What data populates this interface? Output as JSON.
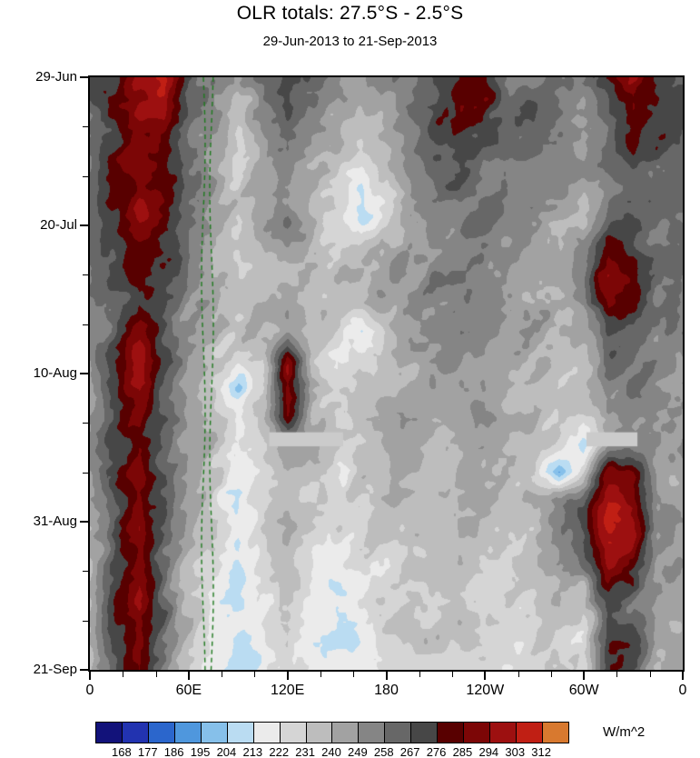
{
  "chart": {
    "title": "OLR totals: 27.5°S - 2.5°S",
    "subtitle": "29-Jun-2013 to 21-Sep-2013",
    "colorbar": {
      "units": "W/m^2"
    }
  },
  "chart_data": {
    "type": "heatmap",
    "title": "OLR totals: 27.5°S - 2.5°S",
    "subtitle": "29-Jun-2013 to 21-Sep-2013",
    "x_axis": {
      "range_deg_lon": [
        0,
        360
      ],
      "ticks": [
        {
          "v": 0,
          "label": "0"
        },
        {
          "v": 60,
          "label": "60E"
        },
        {
          "v": 120,
          "label": "120E"
        },
        {
          "v": 180,
          "label": "180"
        },
        {
          "v": 240,
          "label": "120W"
        },
        {
          "v": 300,
          "label": "60W"
        },
        {
          "v": 360,
          "label": "0"
        }
      ],
      "minor_step": 20
    },
    "y_axis": {
      "range_days": [
        0,
        84
      ],
      "direction": "time-increases-downward",
      "ticks": [
        {
          "v": 0,
          "label": "29-Jun"
        },
        {
          "v": 21,
          "label": "20-Jul"
        },
        {
          "v": 42,
          "label": "10-Aug"
        },
        {
          "v": 63,
          "label": "31-Aug"
        },
        {
          "v": 84,
          "label": "21-Sep"
        }
      ],
      "minor_step": 7
    },
    "colorbar": {
      "units": "W/m^2",
      "levels": [
        168,
        177,
        186,
        195,
        204,
        213,
        222,
        231,
        240,
        249,
        258,
        267,
        276,
        285,
        294,
        303,
        312
      ],
      "colors": [
        "#12127a",
        "#2233b0",
        "#2b66cc",
        "#4f97dd",
        "#86c0ea",
        "#badcf2",
        "#ebebeb",
        "#d5d5d5",
        "#bdbdbd",
        "#a2a2a2",
        "#858585",
        "#676767",
        "#474747",
        "#580000",
        "#7c0606",
        "#9d1010",
        "#c01f14",
        "#d8792f"
      ]
    },
    "field": {
      "units": "W/m^2",
      "lon_step": 15,
      "day_step": 4,
      "values": [
        [
          266,
          274,
          290,
          296,
          268,
          256,
          246,
          260,
          266,
          258,
          250,
          246,
          252,
          260,
          270,
          288,
          290,
          268,
          262,
          258,
          252,
          270,
          294,
          280,
          266
        ],
        [
          264,
          278,
          296,
          300,
          266,
          250,
          234,
          246,
          262,
          254,
          246,
          240,
          248,
          258,
          268,
          284,
          282,
          264,
          260,
          254,
          248,
          264,
          288,
          274,
          264
        ],
        [
          262,
          272,
          288,
          290,
          264,
          248,
          228,
          244,
          260,
          250,
          242,
          232,
          240,
          252,
          264,
          274,
          272,
          262,
          258,
          252,
          246,
          260,
          280,
          270,
          262
        ],
        [
          260,
          282,
          294,
          284,
          260,
          246,
          232,
          246,
          256,
          244,
          234,
          224,
          236,
          250,
          262,
          268,
          264,
          258,
          254,
          250,
          244,
          258,
          274,
          267,
          260
        ],
        [
          259,
          276,
          290,
          280,
          257,
          248,
          238,
          248,
          254,
          240,
          228,
          206,
          222,
          248,
          260,
          264,
          262,
          256,
          252,
          247,
          240,
          254,
          270,
          264,
          259
        ],
        [
          258,
          272,
          287,
          277,
          255,
          246,
          236,
          244,
          252,
          238,
          222,
          210,
          226,
          246,
          258,
          262,
          260,
          254,
          250,
          244,
          242,
          262,
          268,
          262,
          258
        ],
        [
          257,
          268,
          280,
          272,
          253,
          244,
          232,
          242,
          250,
          236,
          230,
          232,
          238,
          248,
          255,
          260,
          258,
          252,
          248,
          242,
          250,
          278,
          274,
          260,
          257
        ],
        [
          256,
          270,
          287,
          274,
          252,
          242,
          228,
          238,
          246,
          240,
          244,
          242,
          244,
          250,
          254,
          258,
          256,
          250,
          246,
          240,
          250,
          292,
          287,
          258,
          256
        ],
        [
          254,
          266,
          282,
          270,
          250,
          242,
          230,
          240,
          248,
          236,
          232,
          236,
          240,
          248,
          252,
          256,
          254,
          248,
          244,
          238,
          247,
          294,
          282,
          256,
          254
        ],
        [
          254,
          268,
          284,
          267,
          248,
          240,
          228,
          238,
          246,
          232,
          224,
          204,
          232,
          246,
          250,
          254,
          252,
          246,
          242,
          236,
          242,
          274,
          267,
          254,
          254
        ],
        [
          252,
          274,
          296,
          272,
          247,
          238,
          226,
          236,
          288,
          234,
          222,
          228,
          236,
          244,
          248,
          252,
          250,
          244,
          240,
          234,
          240,
          264,
          260,
          252,
          252
        ],
        [
          250,
          272,
          293,
          270,
          246,
          236,
          210,
          232,
          294,
          238,
          226,
          232,
          238,
          242,
          246,
          250,
          248,
          242,
          238,
          232,
          234,
          257,
          254,
          250,
          250
        ],
        [
          249,
          270,
          289,
          267,
          244,
          234,
          222,
          234,
          284,
          240,
          229,
          234,
          240,
          242,
          244,
          248,
          246,
          240,
          236,
          230,
          230,
          252,
          250,
          248,
          249
        ],
        [
          248,
          272,
          287,
          264,
          242,
          232,
          224,
          234,
          248,
          238,
          231,
          235,
          240,
          240,
          242,
          246,
          244,
          238,
          234,
          228,
          207,
          247,
          248,
          247,
          248
        ],
        [
          247,
          274,
          291,
          264,
          242,
          230,
          219,
          232,
          244,
          236,
          229,
          233,
          238,
          240,
          242,
          244,
          242,
          236,
          232,
          197,
          234,
          290,
          287,
          248,
          247
        ],
        [
          246,
          270,
          289,
          262,
          240,
          228,
          216,
          230,
          242,
          232,
          226,
          230,
          236,
          238,
          240,
          242,
          240,
          234,
          240,
          252,
          262,
          300,
          294,
          252,
          246
        ],
        [
          246,
          267,
          286,
          260,
          240,
          227,
          218,
          230,
          240,
          229,
          222,
          228,
          234,
          236,
          238,
          240,
          238,
          232,
          237,
          250,
          267,
          302,
          297,
          254,
          246
        ],
        [
          245,
          270,
          286,
          258,
          238,
          225,
          216,
          228,
          238,
          226,
          219,
          226,
          232,
          234,
          236,
          238,
          236,
          230,
          234,
          247,
          260,
          297,
          292,
          252,
          245
        ],
        [
          244,
          274,
          293,
          262,
          237,
          223,
          218,
          226,
          236,
          224,
          218,
          224,
          230,
          232,
          234,
          236,
          234,
          228,
          230,
          240,
          237,
          284,
          277,
          250,
          244
        ],
        [
          244,
          277,
          296,
          264,
          236,
          221,
          218,
          224,
          234,
          222,
          216,
          222,
          228,
          230,
          232,
          234,
          232,
          226,
          228,
          236,
          230,
          270,
          264,
          248,
          244
        ],
        [
          243,
          274,
          291,
          260,
          235,
          219,
          217,
          222,
          232,
          220,
          216,
          220,
          226,
          228,
          230,
          232,
          230,
          224,
          226,
          232,
          227,
          280,
          274,
          247,
          243
        ],
        [
          242,
          270,
          287,
          257,
          234,
          218,
          216,
          220,
          230,
          219,
          215,
          218,
          224,
          226,
          228,
          230,
          228,
          222,
          224,
          230,
          224,
          272,
          267,
          244,
          242
        ]
      ]
    },
    "overlays": {
      "green_dashed_lines_lon_e": [
        69,
        74
      ],
      "missing_data_bars": [
        {
          "lon_min": 109,
          "lon_max": 154,
          "day_min": 50.4,
          "day_max": 52.4
        },
        {
          "lon_min": 302,
          "lon_max": 333,
          "day_min": 50.4,
          "day_max": 52.4
        }
      ]
    }
  }
}
